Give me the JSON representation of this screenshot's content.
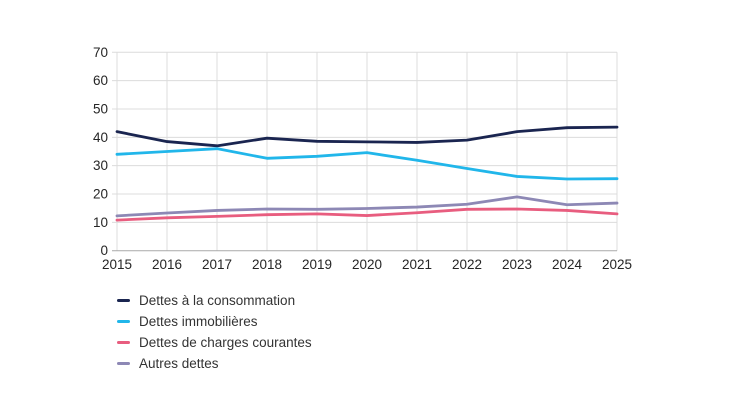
{
  "chart_data": {
    "type": "line",
    "title": "",
    "xlabel": "",
    "ylabel": "",
    "x": [
      2015,
      2016,
      2017,
      2018,
      2019,
      2020,
      2021,
      2022,
      2023,
      2024,
      2025
    ],
    "series": [
      {
        "name": "Dettes à la consommation",
        "color": "#1a2550",
        "values": [
          42,
          38.5,
          37,
          39.7,
          38.6,
          38.4,
          38.2,
          39,
          42,
          43.4,
          43.6
        ]
      },
      {
        "name": "Dettes immobilières",
        "color": "#21b6ea",
        "values": [
          34,
          35,
          36,
          32.6,
          33.3,
          34.6,
          31.9,
          29,
          26.2,
          25.3,
          25.4
        ]
      },
      {
        "name": "Dettes de charges courantes",
        "color": "#e85d7f",
        "values": [
          10.8,
          11.6,
          12.1,
          12.7,
          13,
          12.4,
          13.4,
          14.6,
          14.7,
          14.2,
          13
        ]
      },
      {
        "name": "Autres dettes",
        "color": "#8d88b5",
        "values": [
          12.3,
          13.3,
          14.2,
          14.7,
          14.6,
          14.9,
          15.4,
          16.4,
          19,
          16.2,
          16.8
        ]
      }
    ],
    "ylim": [
      0,
      70
    ],
    "yticks": [
      0,
      10,
      20,
      30,
      40,
      50,
      60,
      70
    ],
    "grid": true,
    "legend_position": "bottom-left",
    "colors": {
      "gridline": "#dcdcdc",
      "zero_axis": "#a9a9a9",
      "tick_text": "#262626",
      "legend_text": "#333333",
      "background": "#ffffff"
    }
  }
}
